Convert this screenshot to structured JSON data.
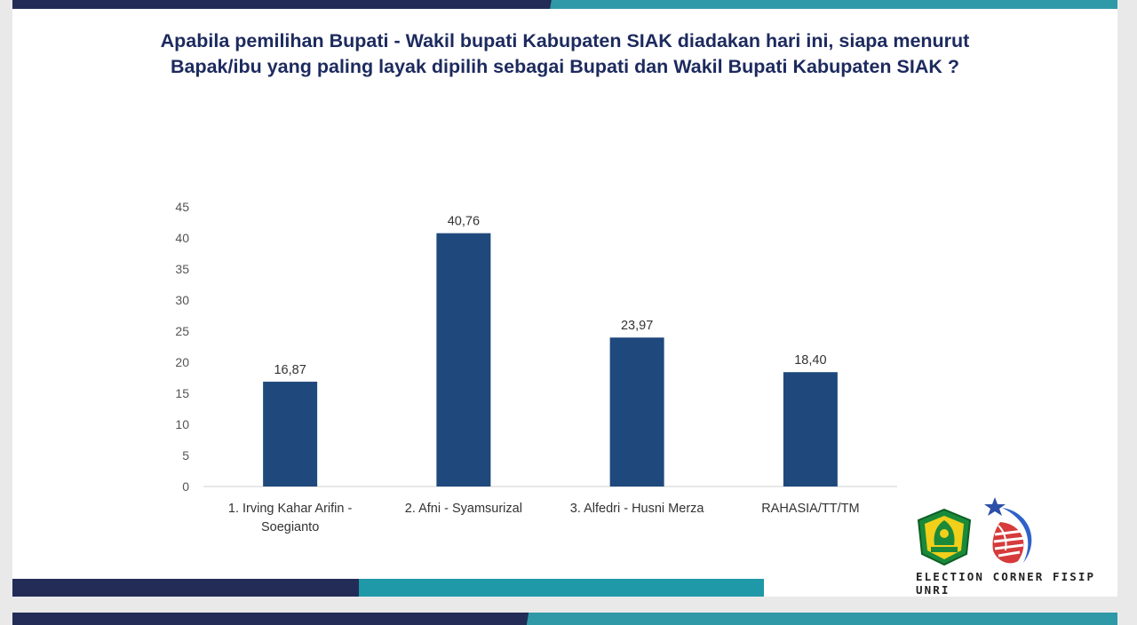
{
  "title_line1": "Apabila pemilihan Bupati - Wakil bupati Kabupaten SIAK diadakan hari ini, siapa menurut",
  "title_line2": "Bapak/ibu yang paling layak dipilih sebagai Bupati dan Wakil Bupati Kabupaten SIAK ?",
  "brand": "ELECTION CORNER FISIP UNRI",
  "colors": {
    "bar": "#1f497d",
    "navy": "#222c57",
    "teal": "#2f99a8",
    "title": "#1c2a5e"
  },
  "chart_data": {
    "type": "bar",
    "categories": [
      [
        "1. Irving Kahar Arifin -",
        "Soegianto"
      ],
      [
        "2. Afni - Syamsurizal"
      ],
      [
        "3. Alfedri - Husni Merza"
      ],
      [
        "RAHASIA/TT/TM"
      ]
    ],
    "values": [
      16.87,
      40.76,
      23.97,
      18.4
    ],
    "data_labels": [
      "16,87",
      "40,76",
      "23,97",
      "18,40"
    ],
    "ylim": [
      0,
      45
    ],
    "yticks": [
      0,
      5,
      10,
      15,
      20,
      25,
      30,
      35,
      40,
      45
    ],
    "grid": false,
    "legend": "none"
  }
}
